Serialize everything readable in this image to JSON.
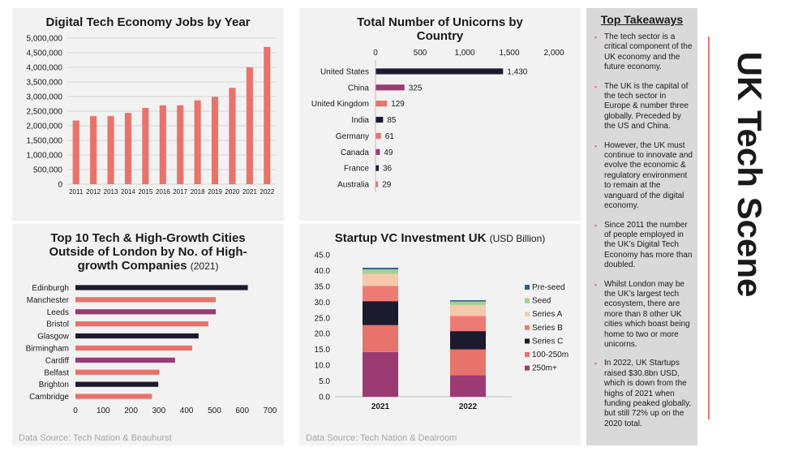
{
  "side_title": "UK Tech Scene",
  "takeaways": {
    "heading": "Top Takeaways",
    "items": [
      "The tech sector is a critical component of the UK economy and the future economy.",
      "The UK is the capital of the tech sector in Europe & number three globally.  Preceded by the US and China.",
      "However, the UK must continue to innovate and evolve the economic & regulatory environment to remain at the vanguard of the digital economy.",
      "Since 2011 the number of people employed in the UK’s Digital Tech Economy has more than doubled.",
      "Whilst London may be the UK’s largest tech ecosystem, there are more than 8 other UK cities which boast being home to two or more unicorns.",
      "In 2022, UK Startups raised $30.8bn USD, which is down from the highs of 2021 when funding peaked globally, but still 72% up on the 2020 total."
    ]
  },
  "colors": {
    "coral": "#e8736b",
    "navy": "#1c1a2e",
    "purple": "#9b3a73",
    "panel": "#f2f2f2",
    "side": "#d9d9d9"
  },
  "sources": {
    "left": "Data Source: Tech Nation & Beauhurst",
    "right": "Data Source: Tech Nation & Dealroom"
  },
  "chart_data": [
    {
      "id": "jobs",
      "type": "bar",
      "title": "Digital Tech Economy Jobs by Year",
      "categories": [
        "2011",
        "2012",
        "2013",
        "2014",
        "2015",
        "2016",
        "2017",
        "2018",
        "2019",
        "2020",
        "2021",
        "2022"
      ],
      "values": [
        2180000,
        2330000,
        2330000,
        2440000,
        2610000,
        2700000,
        2700000,
        2870000,
        2990000,
        3300000,
        4000000,
        4700000
      ],
      "ylim": [
        0,
        5000000
      ],
      "yticks": [
        0,
        500000,
        1000000,
        1500000,
        2000000,
        2500000,
        3000000,
        3500000,
        4000000,
        4500000,
        5000000
      ],
      "ytick_labels": [
        "0",
        "500,000",
        "1,000,000",
        "1,500,000",
        "2,000,000",
        "2,500,000",
        "3,000,000",
        "3,500,000",
        "4,000,000",
        "4,500,000",
        "5,000,000"
      ],
      "gridlines": true,
      "xlabel": "",
      "ylabel": ""
    },
    {
      "id": "unicorns",
      "type": "bar",
      "orientation": "horizontal",
      "title": "Total Number of Unicorns by Country",
      "categories": [
        "United States",
        "China",
        "United Kingdom",
        "India",
        "Germany",
        "Canada",
        "France",
        "Australia"
      ],
      "values": [
        1430,
        325,
        129,
        85,
        61,
        49,
        36,
        29
      ],
      "data_labels": [
        "1,430",
        "325",
        "129",
        "85",
        "61",
        "49",
        "36",
        "29"
      ],
      "bar_colors": [
        "#1c1a2e",
        "#9b3a73",
        "#e8736b",
        "#1c1a2e",
        "#e8736b",
        "#9b3a73",
        "#1c1a2e",
        "#e8736b"
      ],
      "xlim": [
        0,
        2000
      ],
      "xticks": [
        0,
        500,
        1000,
        1500,
        2000
      ],
      "xtick_labels": [
        "0",
        "500",
        "1,000",
        "1,500",
        "2,000"
      ],
      "xaxis_position": "top"
    },
    {
      "id": "cities",
      "type": "bar",
      "orientation": "horizontal",
      "title": "Top 10 Tech & High-Growth Cities Outside of London by No. of High-growth Companies",
      "title_suffix": "(2021)",
      "categories": [
        "Edinburgh",
        "Manchester",
        "Leeds",
        "Bristol",
        "Glasgow",
        "Birmingham",
        "Cardiff",
        "Belfast",
        "Brighton",
        "Cambridge"
      ],
      "values": [
        620,
        505,
        505,
        478,
        443,
        420,
        358,
        302,
        298,
        275
      ],
      "bar_colors": [
        "#1c1a2e",
        "#e8736b",
        "#9b3a73",
        "#e8736b",
        "#1c1a2e",
        "#e8736b",
        "#9b3a73",
        "#e8736b",
        "#1c1a2e",
        "#e8736b"
      ],
      "xlim": [
        0,
        700
      ],
      "xticks": [
        0,
        100,
        200,
        300,
        400,
        500,
        600,
        700
      ],
      "xtick_labels": [
        "0",
        "100",
        "200",
        "300",
        "400",
        "500",
        "600",
        "700"
      ]
    },
    {
      "id": "vc",
      "type": "bar",
      "stacked": true,
      "title": "Startup VC Investment UK",
      "title_suffix": "(USD Billion)",
      "categories": [
        "2021",
        "2022"
      ],
      "series": [
        {
          "name": "250m+",
          "color": "#9b3a73",
          "values": [
            14.2,
            6.8
          ]
        },
        {
          "name": "100-250m",
          "color": "#e8736b",
          "values": [
            8.5,
            8.2
          ]
        },
        {
          "name": "Series C",
          "color": "#1c1a2e",
          "values": [
            7.6,
            5.8
          ]
        },
        {
          "name": "Series B",
          "color": "#ee7b73",
          "values": [
            4.8,
            4.8
          ]
        },
        {
          "name": "Series A",
          "color": "#f6c9ac",
          "values": [
            3.8,
            3.5
          ]
        },
        {
          "name": "Seed",
          "color": "#a6cf8e",
          "values": [
            1.5,
            1.1
          ]
        },
        {
          "name": "Pre-seed",
          "color": "#2e5d8f",
          "values": [
            0.5,
            0.4
          ]
        }
      ],
      "legend_order": [
        "Pre-seed",
        "Seed",
        "Series A",
        "Series B",
        "Series C",
        "100-250m",
        "250m+"
      ],
      "ylim": [
        0,
        45
      ],
      "yticks": [
        0,
        5,
        10,
        15,
        20,
        25,
        30,
        35,
        40,
        45
      ],
      "ytick_labels": [
        "0.0",
        "5.0",
        "10.0",
        "15.0",
        "20.0",
        "25.0",
        "30.0",
        "35.0",
        "40.0",
        "45.0"
      ],
      "legend_position": "right"
    }
  ]
}
